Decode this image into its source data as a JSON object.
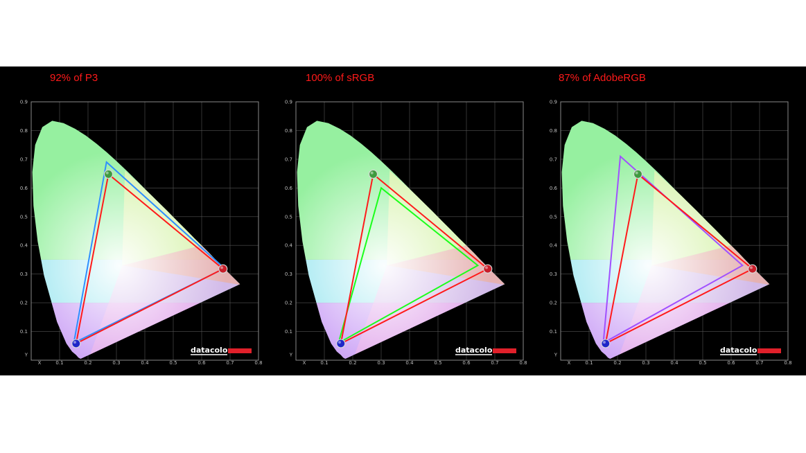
{
  "chart_data": [
    {
      "type": "scatter",
      "title": "92% of P3",
      "x_ticks": [
        "X",
        "0.1",
        "0.2",
        "0.3",
        "0.4",
        "0.5",
        "0.6",
        "0.7",
        "0.8"
      ],
      "y_ticks": [
        "Y",
        "0.1",
        "0.2",
        "0.3",
        "0.4",
        "0.5",
        "0.6",
        "0.7",
        "0.8",
        "0.9"
      ],
      "xlim": [
        0,
        0.8
      ],
      "ylim": [
        0,
        0.9
      ],
      "grid": true,
      "measured": {
        "color": "#ff1a1a",
        "x": [
          0.272,
          0.675,
          0.158
        ],
        "y": [
          0.648,
          0.318,
          0.058
        ]
      },
      "reference": {
        "color": "#2f8fff",
        "x": [
          0.265,
          0.68,
          0.15
        ],
        "y": [
          0.69,
          0.32,
          0.06
        ]
      },
      "logo": "datacolor"
    },
    {
      "type": "scatter",
      "title": "100% of sRGB",
      "x_ticks": [
        "X",
        "0.1",
        "0.2",
        "0.3",
        "0.4",
        "0.5",
        "0.6",
        "0.7",
        "0.8"
      ],
      "y_ticks": [
        "Y",
        "0.1",
        "0.2",
        "0.3",
        "0.4",
        "0.5",
        "0.6",
        "0.7",
        "0.8",
        "0.9"
      ],
      "xlim": [
        0,
        0.8
      ],
      "ylim": [
        0,
        0.9
      ],
      "grid": true,
      "measured": {
        "color": "#ff1a1a",
        "x": [
          0.272,
          0.675,
          0.158
        ],
        "y": [
          0.648,
          0.318,
          0.058
        ]
      },
      "reference": {
        "color": "#1aff1a",
        "x": [
          0.3,
          0.64,
          0.15
        ],
        "y": [
          0.6,
          0.33,
          0.06
        ]
      },
      "logo": "datacolor"
    },
    {
      "type": "scatter",
      "title": "87% of AdobeRGB",
      "x_ticks": [
        "X",
        "0.1",
        "0.2",
        "0.3",
        "0.4",
        "0.5",
        "0.6",
        "0.7",
        "0.8"
      ],
      "y_ticks": [
        "Y",
        "0.1",
        "0.2",
        "0.3",
        "0.4",
        "0.5",
        "0.6",
        "0.7",
        "0.8",
        "0.9"
      ],
      "xlim": [
        0,
        0.8
      ],
      "ylim": [
        0,
        0.9
      ],
      "grid": true,
      "measured": {
        "color": "#ff1a1a",
        "x": [
          0.272,
          0.675,
          0.158
        ],
        "y": [
          0.648,
          0.318,
          0.058
        ]
      },
      "reference": {
        "color": "#a050ff",
        "x": [
          0.21,
          0.64,
          0.15
        ],
        "y": [
          0.71,
          0.33,
          0.06
        ]
      },
      "logo": "datacolor"
    }
  ]
}
